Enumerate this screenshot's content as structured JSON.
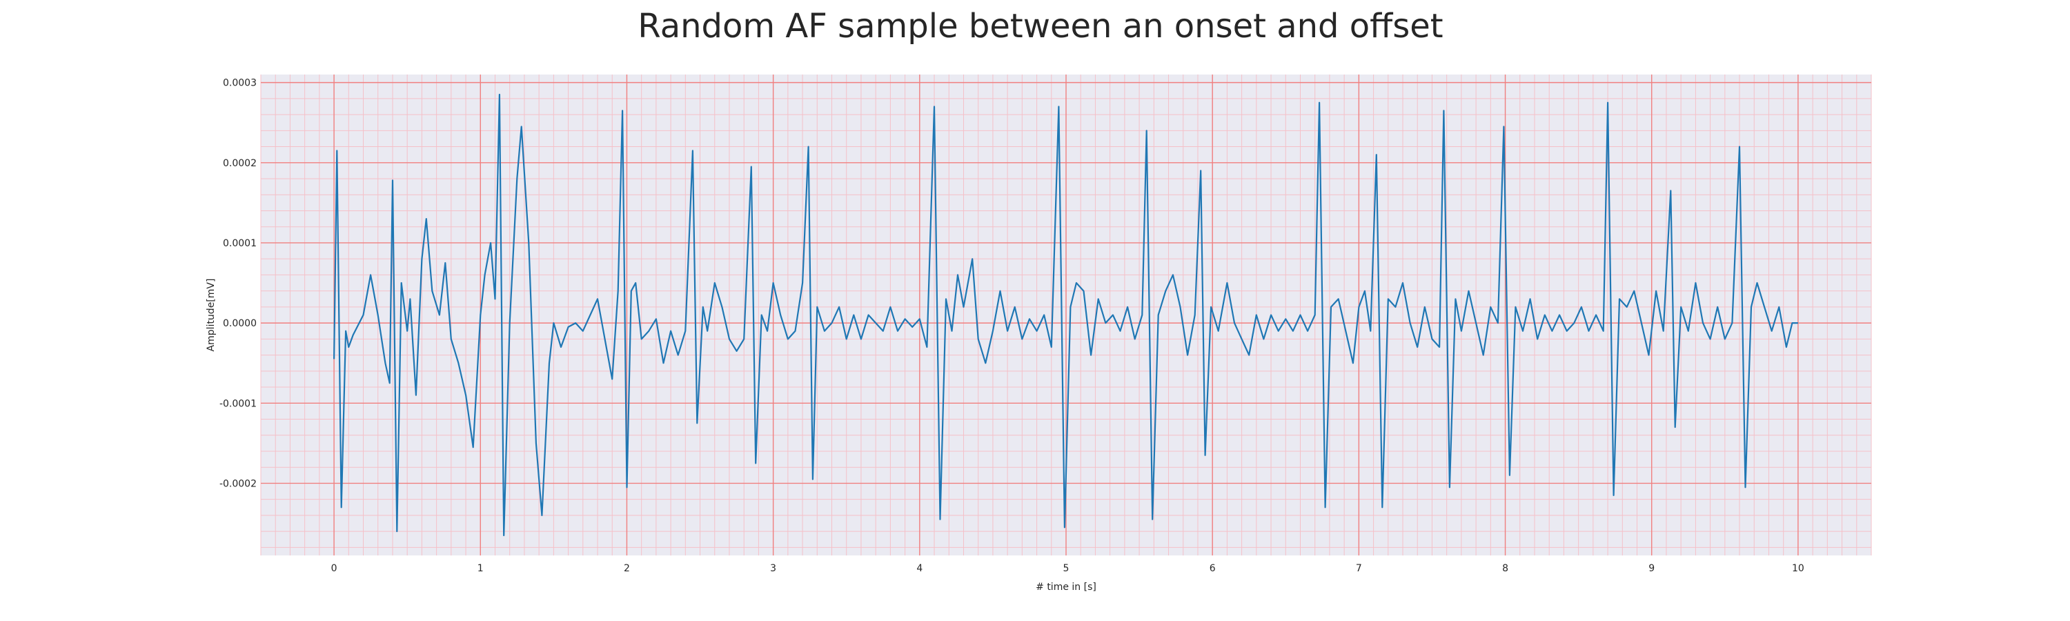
{
  "chart_data": {
    "type": "line",
    "title": "Random AF sample between an onset and offset",
    "xlabel": "# time in [s]",
    "ylabel": "Amplitude[mV]",
    "xlim": [
      -0.5,
      10.5
    ],
    "ylim": [
      -0.00029,
      0.00031
    ],
    "x_ticks": [
      0,
      1,
      2,
      3,
      4,
      5,
      6,
      7,
      8,
      9,
      10
    ],
    "x_tick_labels": [
      "0",
      "1",
      "2",
      "3",
      "4",
      "5",
      "6",
      "7",
      "8",
      "9",
      "10"
    ],
    "y_ticks": [
      0.0003,
      0.0002,
      0.0001,
      0.0,
      -0.0001,
      -0.0002
    ],
    "y_tick_labels": [
      "0.0003",
      "0.0002",
      "0.0001",
      "0.0000",
      "-0.0001",
      "-0.0002"
    ],
    "grid": true,
    "grid_major_color": "#f08080",
    "grid_minor_color": "#f5c0c8",
    "background_color": "#eaeaf2",
    "series": [
      {
        "color": "#1f77b4",
        "points": [
          [
            0.0,
            -4.5e-05
          ],
          [
            0.02,
            0.000215
          ],
          [
            0.05,
            -0.00023
          ],
          [
            0.08,
            -1e-05
          ],
          [
            0.1,
            -3e-05
          ],
          [
            0.13,
            -1.5e-05
          ],
          [
            0.2,
            1e-05
          ],
          [
            0.25,
            6e-05
          ],
          [
            0.3,
            1e-05
          ],
          [
            0.35,
            -5e-05
          ],
          [
            0.38,
            -7.5e-05
          ],
          [
            0.4,
            0.000178
          ],
          [
            0.43,
            -0.00026
          ],
          [
            0.46,
            5e-05
          ],
          [
            0.5,
            -1e-05
          ],
          [
            0.52,
            3e-05
          ],
          [
            0.56,
            -9e-05
          ],
          [
            0.6,
            8e-05
          ],
          [
            0.63,
            0.00013
          ],
          [
            0.67,
            4e-05
          ],
          [
            0.72,
            1e-05
          ],
          [
            0.76,
            7.5e-05
          ],
          [
            0.8,
            -2e-05
          ],
          [
            0.85,
            -5e-05
          ],
          [
            0.9,
            -9e-05
          ],
          [
            0.95,
            -0.000155
          ],
          [
            1.0,
            1e-05
          ],
          [
            1.03,
            6e-05
          ],
          [
            1.07,
            0.0001
          ],
          [
            1.1,
            3e-05
          ],
          [
            1.13,
            0.000285
          ],
          [
            1.16,
            -0.000265
          ],
          [
            1.2,
            0.0
          ],
          [
            1.25,
            0.00018
          ],
          [
            1.28,
            0.000245
          ],
          [
            1.33,
            0.0001
          ],
          [
            1.38,
            -0.00015
          ],
          [
            1.42,
            -0.00024
          ],
          [
            1.47,
            -5e-05
          ],
          [
            1.5,
            0.0
          ],
          [
            1.55,
            -3e-05
          ],
          [
            1.6,
            -5e-06
          ],
          [
            1.65,
            0.0
          ],
          [
            1.7,
            -1e-05
          ],
          [
            1.75,
            1e-05
          ],
          [
            1.8,
            3e-05
          ],
          [
            1.86,
            -3e-05
          ],
          [
            1.9,
            -7e-05
          ],
          [
            1.94,
            4e-05
          ],
          [
            1.97,
            0.000265
          ],
          [
            2.0,
            -0.000205
          ],
          [
            2.03,
            4e-05
          ],
          [
            2.06,
            5e-05
          ],
          [
            2.1,
            -2e-05
          ],
          [
            2.15,
            -1e-05
          ],
          [
            2.2,
            5e-06
          ],
          [
            2.25,
            -5e-05
          ],
          [
            2.3,
            -1e-05
          ],
          [
            2.35,
            -4e-05
          ],
          [
            2.4,
            -1e-05
          ],
          [
            2.45,
            0.000215
          ],
          [
            2.48,
            -0.000125
          ],
          [
            2.52,
            2e-05
          ],
          [
            2.55,
            -1e-05
          ],
          [
            2.6,
            5e-05
          ],
          [
            2.65,
            2e-05
          ],
          [
            2.7,
            -2e-05
          ],
          [
            2.75,
            -3.5e-05
          ],
          [
            2.8,
            -2e-05
          ],
          [
            2.85,
            0.000195
          ],
          [
            2.88,
            -0.000175
          ],
          [
            2.92,
            1e-05
          ],
          [
            2.96,
            -1e-05
          ],
          [
            3.0,
            5e-05
          ],
          [
            3.05,
            1e-05
          ],
          [
            3.1,
            -2e-05
          ],
          [
            3.15,
            -1e-05
          ],
          [
            3.2,
            5e-05
          ],
          [
            3.24,
            0.00022
          ],
          [
            3.27,
            -0.000195
          ],
          [
            3.3,
            2e-05
          ],
          [
            3.35,
            -1e-05
          ],
          [
            3.4,
            0.0
          ],
          [
            3.45,
            2e-05
          ],
          [
            3.5,
            -2e-05
          ],
          [
            3.55,
            1e-05
          ],
          [
            3.6,
            -2e-05
          ],
          [
            3.65,
            1e-05
          ],
          [
            3.7,
            0.0
          ],
          [
            3.75,
            -1e-05
          ],
          [
            3.8,
            2e-05
          ],
          [
            3.85,
            -1e-05
          ],
          [
            3.9,
            5e-06
          ],
          [
            3.95,
            -5e-06
          ],
          [
            4.0,
            5e-06
          ],
          [
            4.05,
            -3e-05
          ],
          [
            4.1,
            0.00027
          ],
          [
            4.14,
            -0.000245
          ],
          [
            4.18,
            3e-05
          ],
          [
            4.22,
            -1e-05
          ],
          [
            4.26,
            6e-05
          ],
          [
            4.3,
            2e-05
          ],
          [
            4.36,
            8e-05
          ],
          [
            4.4,
            -2e-05
          ],
          [
            4.45,
            -5e-05
          ],
          [
            4.5,
            -1e-05
          ],
          [
            4.55,
            4e-05
          ],
          [
            4.6,
            -1e-05
          ],
          [
            4.65,
            2e-05
          ],
          [
            4.7,
            -2e-05
          ],
          [
            4.75,
            5e-06
          ],
          [
            4.8,
            -1e-05
          ],
          [
            4.85,
            1e-05
          ],
          [
            4.9,
            -3e-05
          ],
          [
            4.95,
            0.00027
          ],
          [
            4.99,
            -0.000255
          ],
          [
            5.03,
            2e-05
          ],
          [
            5.07,
            5e-05
          ],
          [
            5.12,
            4e-05
          ],
          [
            5.17,
            -4e-05
          ],
          [
            5.22,
            3e-05
          ],
          [
            5.27,
            0.0
          ],
          [
            5.32,
            1e-05
          ],
          [
            5.37,
            -1e-05
          ],
          [
            5.42,
            2e-05
          ],
          [
            5.47,
            -2e-05
          ],
          [
            5.52,
            1e-05
          ],
          [
            5.55,
            0.00024
          ],
          [
            5.59,
            -0.000245
          ],
          [
            5.63,
            1e-05
          ],
          [
            5.68,
            4e-05
          ],
          [
            5.73,
            6e-05
          ],
          [
            5.78,
            2e-05
          ],
          [
            5.83,
            -4e-05
          ],
          [
            5.88,
            1e-05
          ],
          [
            5.92,
            0.00019
          ],
          [
            5.95,
            -0.000165
          ],
          [
            5.99,
            2e-05
          ],
          [
            6.04,
            -1e-05
          ],
          [
            6.1,
            5e-05
          ],
          [
            6.15,
            0.0
          ],
          [
            6.2,
            -2e-05
          ],
          [
            6.25,
            -4e-05
          ],
          [
            6.3,
            1e-05
          ],
          [
            6.35,
            -2e-05
          ],
          [
            6.4,
            1e-05
          ],
          [
            6.45,
            -1e-05
          ],
          [
            6.5,
            5e-06
          ],
          [
            6.55,
            -1e-05
          ],
          [
            6.6,
            1e-05
          ],
          [
            6.65,
            -1e-05
          ],
          [
            6.7,
            1e-05
          ],
          [
            6.73,
            0.000275
          ],
          [
            6.77,
            -0.00023
          ],
          [
            6.81,
            2e-05
          ],
          [
            6.86,
            3e-05
          ],
          [
            6.91,
            -1e-05
          ],
          [
            6.96,
            -5e-05
          ],
          [
            7.0,
            2e-05
          ],
          [
            7.04,
            4e-05
          ],
          [
            7.08,
            -1e-05
          ],
          [
            7.12,
            0.00021
          ],
          [
            7.16,
            -0.00023
          ],
          [
            7.2,
            3e-05
          ],
          [
            7.25,
            2e-05
          ],
          [
            7.3,
            5e-05
          ],
          [
            7.35,
            0.0
          ],
          [
            7.4,
            -3e-05
          ],
          [
            7.45,
            2e-05
          ],
          [
            7.5,
            -2e-05
          ],
          [
            7.55,
            -3e-05
          ],
          [
            7.58,
            0.000265
          ],
          [
            7.62,
            -0.000205
          ],
          [
            7.66,
            3e-05
          ],
          [
            7.7,
            -1e-05
          ],
          [
            7.75,
            4e-05
          ],
          [
            7.8,
            0.0
          ],
          [
            7.85,
            -4e-05
          ],
          [
            7.9,
            2e-05
          ],
          [
            7.95,
            0.0
          ],
          [
            7.99,
            0.000245
          ],
          [
            8.03,
            -0.00019
          ],
          [
            8.07,
            2e-05
          ],
          [
            8.12,
            -1e-05
          ],
          [
            8.17,
            3e-05
          ],
          [
            8.22,
            -2e-05
          ],
          [
            8.27,
            1e-05
          ],
          [
            8.32,
            -1e-05
          ],
          [
            8.37,
            1e-05
          ],
          [
            8.42,
            -1e-05
          ],
          [
            8.47,
            0.0
          ],
          [
            8.52,
            2e-05
          ],
          [
            8.57,
            -1e-05
          ],
          [
            8.62,
            1e-05
          ],
          [
            8.67,
            -1e-05
          ],
          [
            8.7,
            0.000275
          ],
          [
            8.74,
            -0.000215
          ],
          [
            8.78,
            3e-05
          ],
          [
            8.83,
            2e-05
          ],
          [
            8.88,
            4e-05
          ],
          [
            8.93,
            0.0
          ],
          [
            8.98,
            -4e-05
          ],
          [
            9.03,
            4e-05
          ],
          [
            9.08,
            -1e-05
          ],
          [
            9.13,
            0.000165
          ],
          [
            9.16,
            -0.00013
          ],
          [
            9.2,
            2e-05
          ],
          [
            9.25,
            -1e-05
          ],
          [
            9.3,
            5e-05
          ],
          [
            9.35,
            0.0
          ],
          [
            9.4,
            -2e-05
          ],
          [
            9.45,
            2e-05
          ],
          [
            9.5,
            -2e-05
          ],
          [
            9.55,
            0.0
          ],
          [
            9.6,
            0.00022
          ],
          [
            9.64,
            -0.000205
          ],
          [
            9.68,
            2e-05
          ],
          [
            9.72,
            5e-05
          ],
          [
            9.77,
            2e-05
          ],
          [
            9.82,
            -1e-05
          ],
          [
            9.87,
            2e-05
          ],
          [
            9.92,
            -3e-05
          ],
          [
            9.96,
            0.0
          ],
          [
            10.0,
            0.0
          ]
        ]
      }
    ]
  },
  "style": {
    "line_color": "#1f77b4"
  }
}
